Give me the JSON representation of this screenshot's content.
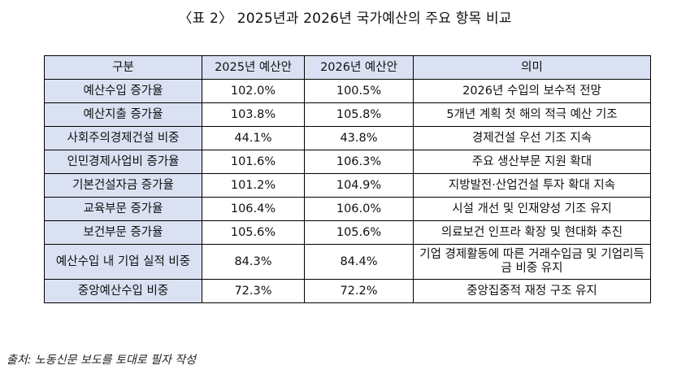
{
  "title": "〈표 2〉 2025년과 2026년 국가예산의 주요 항목 비교",
  "table": {
    "headers": [
      "구분",
      "2025년 예산안",
      "2026년 예산안",
      "의미"
    ],
    "rows": [
      [
        "예산수입 증가율",
        "102.0%",
        "100.5%",
        "2026년 수입의 보수적 전망"
      ],
      [
        "예산지출 증가율",
        "103.8%",
        "105.8%",
        "5개년 계획 첫 해의 적극 예산 기조"
      ],
      [
        "사회주의경제건설 비중",
        "44.1%",
        "43.8%",
        "경제건설 우선 기조 지속"
      ],
      [
        "인민경제사업비 증가율",
        "101.6%",
        "106.3%",
        "주요 생산부문 지원 확대"
      ],
      [
        "기본건설자금 증가율",
        "101.2%",
        "104.9%",
        "지방발전·산업건설 투자 확대 지속"
      ],
      [
        "교육부문 증가율",
        "106.4%",
        "106.0%",
        "시설 개선 및 인재양성 기조 유지"
      ],
      [
        "보건부문 증가율",
        "105.6%",
        "105.6%",
        "의료보건 인프라 확장 및 현대화 추진"
      ],
      [
        "예산수입 내 기업 실적 비중",
        "84.3%",
        "84.4%",
        "기업 경제활동에 따른 거래수입금 및 기업리득금 비중 유지"
      ],
      [
        "중앙예산수입 비중",
        "72.3%",
        "72.2%",
        "중앙집중적 재정 구조 유지"
      ]
    ]
  },
  "source": "출처: 노동신문 보도를 토대로 필자 작성"
}
